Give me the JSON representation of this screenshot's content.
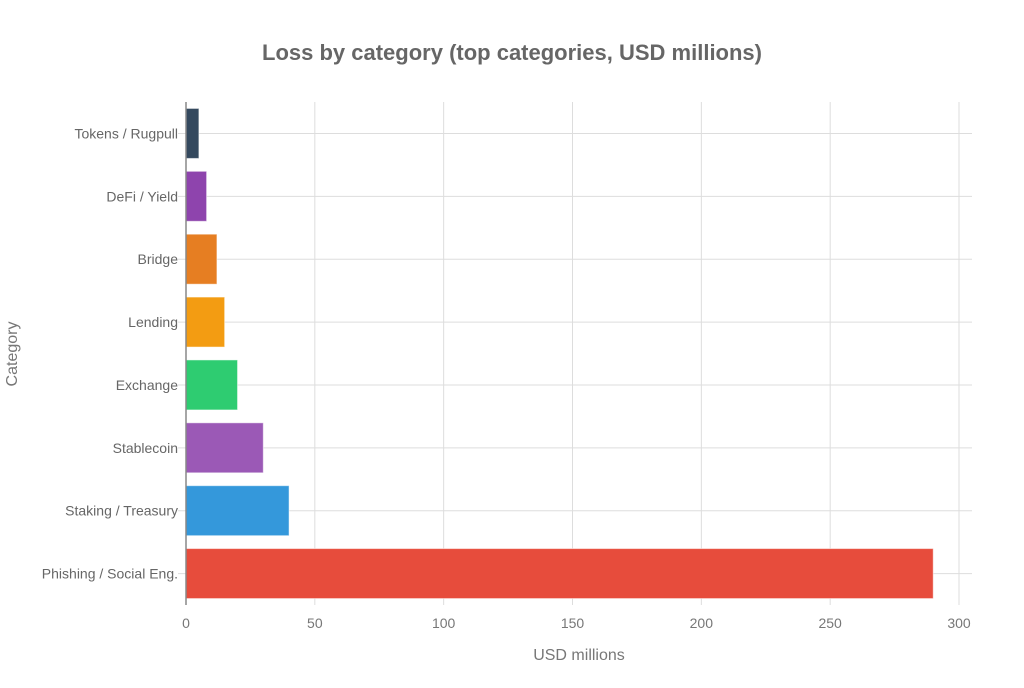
{
  "chart_data": {
    "type": "bar",
    "orientation": "horizontal",
    "title": "Loss by category (top categories, USD millions)",
    "xlabel": "USD millions",
    "ylabel": "Category",
    "xlim": [
      0,
      305
    ],
    "xticks": [
      0,
      50,
      100,
      150,
      200,
      250,
      300
    ],
    "grid": true,
    "categories": [
      "Tokens / Rugpull",
      "DeFi / Yield",
      "Bridge",
      "Lending",
      "Exchange",
      "Stablecoin",
      "Staking / Treasury",
      "Phishing / Social Eng."
    ],
    "values": [
      5,
      8,
      12,
      15,
      20,
      30,
      40,
      290
    ],
    "colors": [
      "#34495e",
      "#8e44ad",
      "#e67e22",
      "#f39c12",
      "#2ecc71",
      "#9b59b6",
      "#3498db",
      "#e74c3c"
    ]
  }
}
